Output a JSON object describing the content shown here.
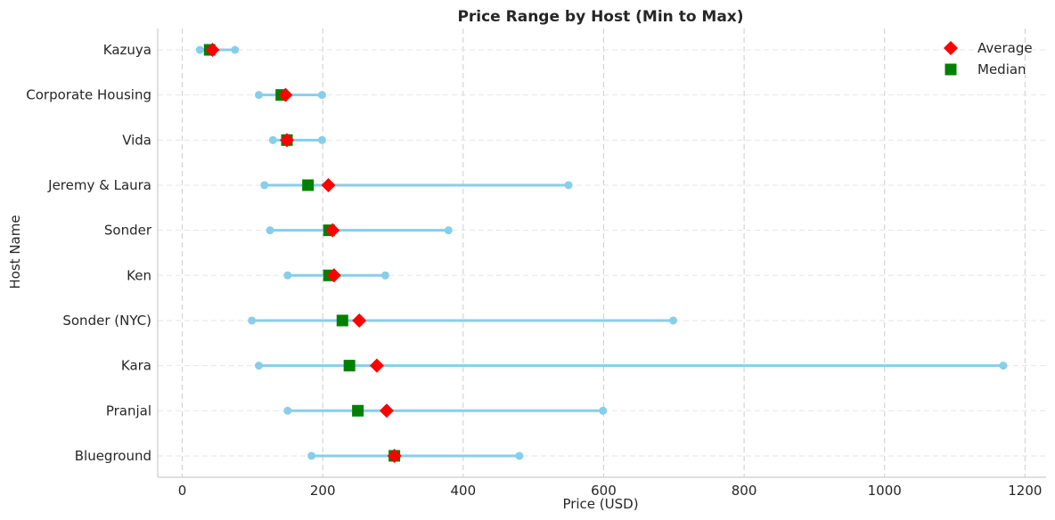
{
  "chart_data": {
    "type": "range-dot",
    "title": "Price Range by Host (Min to Max)",
    "xlabel": "Price (USD)",
    "ylabel": "Host Name",
    "xlim": [
      -35,
      1230
    ],
    "xticks": [
      0,
      200,
      400,
      600,
      800,
      1000,
      1200
    ],
    "grid": true,
    "legend_position": "top-right",
    "legend": [
      {
        "name": "Average",
        "marker": "diamond",
        "color": "#ff0000"
      },
      {
        "name": "Median",
        "marker": "square",
        "color": "#008000"
      }
    ],
    "colors": {
      "range": "#87ceeb",
      "average": "#ff0000",
      "median": "#008000"
    },
    "categories": [
      "Kazuya",
      "Corporate Housing",
      "Vida",
      "Jeremy & Laura",
      "Sonder",
      "Ken",
      "Sonder (NYC)",
      "Kara",
      "Pranjal",
      "Blueground"
    ],
    "min": [
      25,
      109,
      129,
      117,
      125,
      150,
      99,
      109,
      150,
      184
    ],
    "max": [
      75,
      199,
      199,
      550,
      379,
      289,
      699,
      1169,
      599,
      480
    ],
    "average": [
      43,
      147,
      149,
      208,
      214,
      216,
      252,
      277,
      291,
      302
    ],
    "median": [
      39,
      141,
      149,
      179,
      209,
      209,
      228,
      238,
      250,
      302
    ]
  }
}
